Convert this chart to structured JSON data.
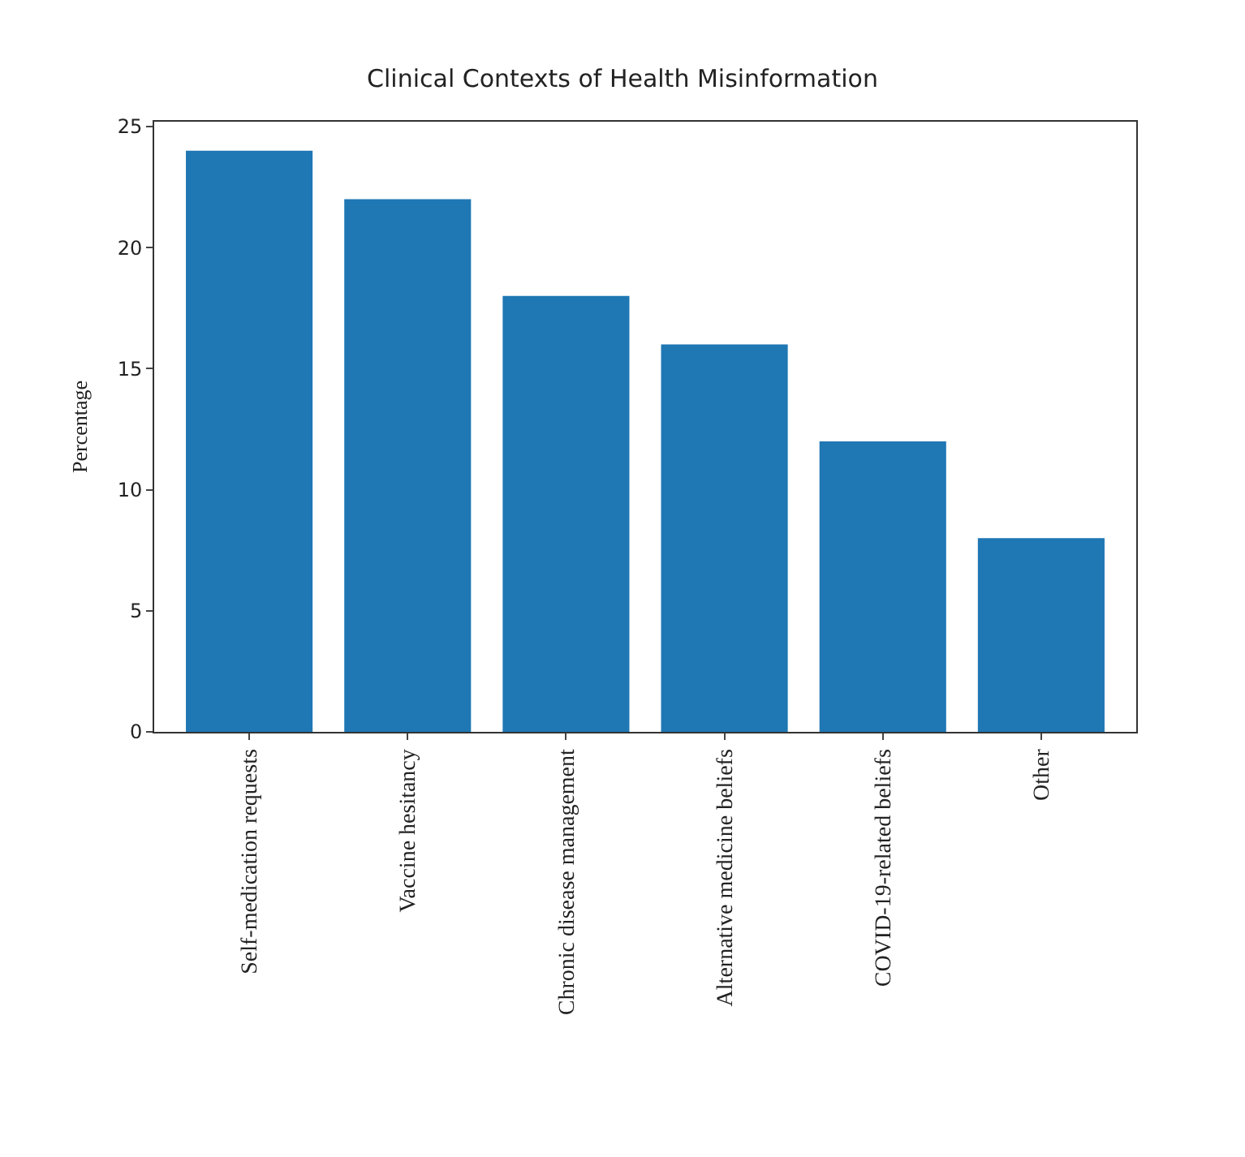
{
  "chart_data": {
    "type": "bar",
    "title": "Clinical Contexts of Health Misinformation",
    "ylabel": "Percentage",
    "categories": [
      "Self-medication requests",
      "Vaccine hesitancy",
      "Chronic disease management",
      "Alternative medicine beliefs",
      "COVID-19-related beliefs",
      "Other"
    ],
    "values": [
      24,
      22,
      18,
      16,
      12,
      8
    ],
    "color": "#1f77b4",
    "ylim": [
      0,
      25.2
    ],
    "yticks": [
      0,
      5,
      10,
      15,
      20,
      25
    ]
  }
}
